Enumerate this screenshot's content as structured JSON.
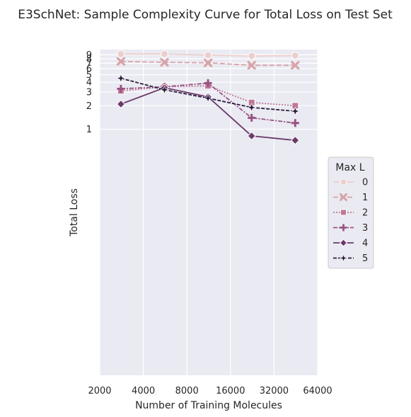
{
  "chart_data": {
    "type": "line",
    "title": "E3SchNet: Sample Complexity Curve for Total Loss on Test Set",
    "xlabel": "Number of Training Molecules",
    "ylabel": "Total Loss",
    "x_scale": "log2",
    "xlim": [
      2000,
      64000
    ],
    "x_ticks": [
      2000,
      4000,
      8000,
      16000,
      32000,
      64000
    ],
    "x_tick_labels": [
      "2000",
      "4000",
      "8000",
      "16000",
      "32000",
      "64000"
    ],
    "y_scale": "log",
    "ylim": [
      0.0007,
      10.5
    ],
    "y_ticks": [
      1,
      2,
      3,
      4,
      5,
      6,
      7,
      8,
      9
    ],
    "y_tick_labels": [
      "1",
      "2",
      "3",
      "4",
      "5",
      "6",
      "7",
      "8",
      "9"
    ],
    "grid": true,
    "legend_title": "Max L",
    "legend_position": "right",
    "x": [
      2800,
      5600,
      11200,
      22400,
      44800
    ],
    "series": [
      {
        "name": "0",
        "color": "#ebcfcd",
        "dash": "",
        "marker": "circle",
        "values": [
          9.2,
          9.2,
          8.9,
          8.7,
          8.8
        ]
      },
      {
        "name": "1",
        "color": "#d8a3a7",
        "dash": "7,3",
        "marker": "x",
        "values": [
          7.4,
          7.2,
          7.1,
          6.6,
          6.6
        ]
      },
      {
        "name": "2",
        "color": "#c07897",
        "dash": "2,2",
        "marker": "square",
        "values": [
          3.1,
          3.5,
          3.6,
          2.2,
          2.0
        ]
      },
      {
        "name": "3",
        "color": "#985481",
        "dash": "6,2,2,2",
        "marker": "plus",
        "values": [
          3.3,
          3.5,
          3.9,
          1.4,
          1.2
        ]
      },
      {
        "name": "4",
        "color": "#6b3a6a",
        "dash": "",
        "marker": "diamond",
        "values": [
          2.1,
          3.4,
          2.6,
          0.82,
          0.72
        ]
      },
      {
        "name": "5",
        "color": "#2d1e3e",
        "dash": "5,2",
        "marker": "star",
        "values": [
          4.5,
          3.2,
          2.5,
          1.9,
          1.7
        ]
      }
    ]
  }
}
